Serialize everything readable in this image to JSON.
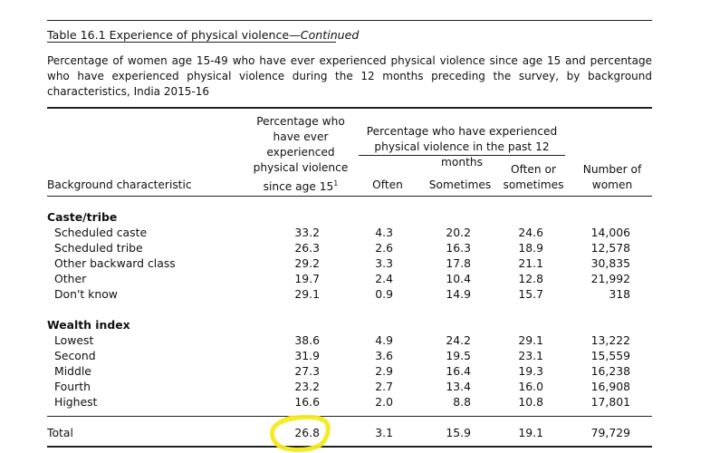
{
  "table_title": {
    "prefix": "Table 16.1 Experience of physical violence—",
    "continued": "Continued"
  },
  "description": "Percentage of women age 15-49 who have ever experienced physical violence since age 15 and percentage who have experienced physical violence during the 12 months preceding the survey, by background characteristics, India 2015-16",
  "headers": {
    "background": "Background characteristic",
    "ever": [
      "Percentage who",
      "have ever",
      "experienced",
      "physical violence",
      "since age 15"
    ],
    "ever_superscript": "1",
    "past12_group": [
      "Percentage who have experienced",
      "physical violence in the past 12 months"
    ],
    "often": "Often",
    "sometimes": "Sometimes",
    "often_or_sometimes": [
      "Often or",
      "sometimes"
    ],
    "number": [
      "Number of",
      "women"
    ]
  },
  "sections": [
    {
      "label": "Caste/tribe",
      "rows": [
        {
          "name": "Scheduled caste",
          "ever": "33.2",
          "often": "4.3",
          "sometimes": "20.2",
          "either": "24.6",
          "women": "14,006"
        },
        {
          "name": "Scheduled tribe",
          "ever": "26.3",
          "often": "2.6",
          "sometimes": "16.3",
          "either": "18.9",
          "women": "12,578"
        },
        {
          "name": "Other backward class",
          "ever": "29.2",
          "often": "3.3",
          "sometimes": "17.8",
          "either": "21.1",
          "women": "30,835"
        },
        {
          "name": "Other",
          "ever": "19.7",
          "often": "2.4",
          "sometimes": "10.4",
          "either": "12.8",
          "women": "21,992"
        },
        {
          "name": "Don't know",
          "ever": "29.1",
          "often": "0.9",
          "sometimes": "14.9",
          "either": "15.7",
          "women": "318"
        }
      ]
    },
    {
      "label": "Wealth index",
      "rows": [
        {
          "name": "Lowest",
          "ever": "38.6",
          "often": "4.9",
          "sometimes": "24.2",
          "either": "29.1",
          "women": "13,222"
        },
        {
          "name": "Second",
          "ever": "31.9",
          "often": "3.6",
          "sometimes": "19.5",
          "either": "23.1",
          "women": "15,559"
        },
        {
          "name": "Middle",
          "ever": "27.3",
          "often": "2.9",
          "sometimes": "16.4",
          "either": "19.3",
          "women": "16,238"
        },
        {
          "name": "Fourth",
          "ever": "23.2",
          "often": "2.7",
          "sometimes": "13.4",
          "either": "16.0",
          "women": "16,908"
        },
        {
          "name": "Highest",
          "ever": "16.6",
          "often": "2.0",
          "sometimes": "8.8",
          "either": "10.8",
          "women": "17,801"
        }
      ]
    }
  ],
  "total": {
    "name": "Total",
    "ever": "26.8",
    "often": "3.1",
    "sometimes": "15.9",
    "either": "19.1",
    "women": "79,729"
  },
  "colors": {
    "highlight": "#f4ea1c",
    "rule": "#222222",
    "text": "#111111"
  }
}
